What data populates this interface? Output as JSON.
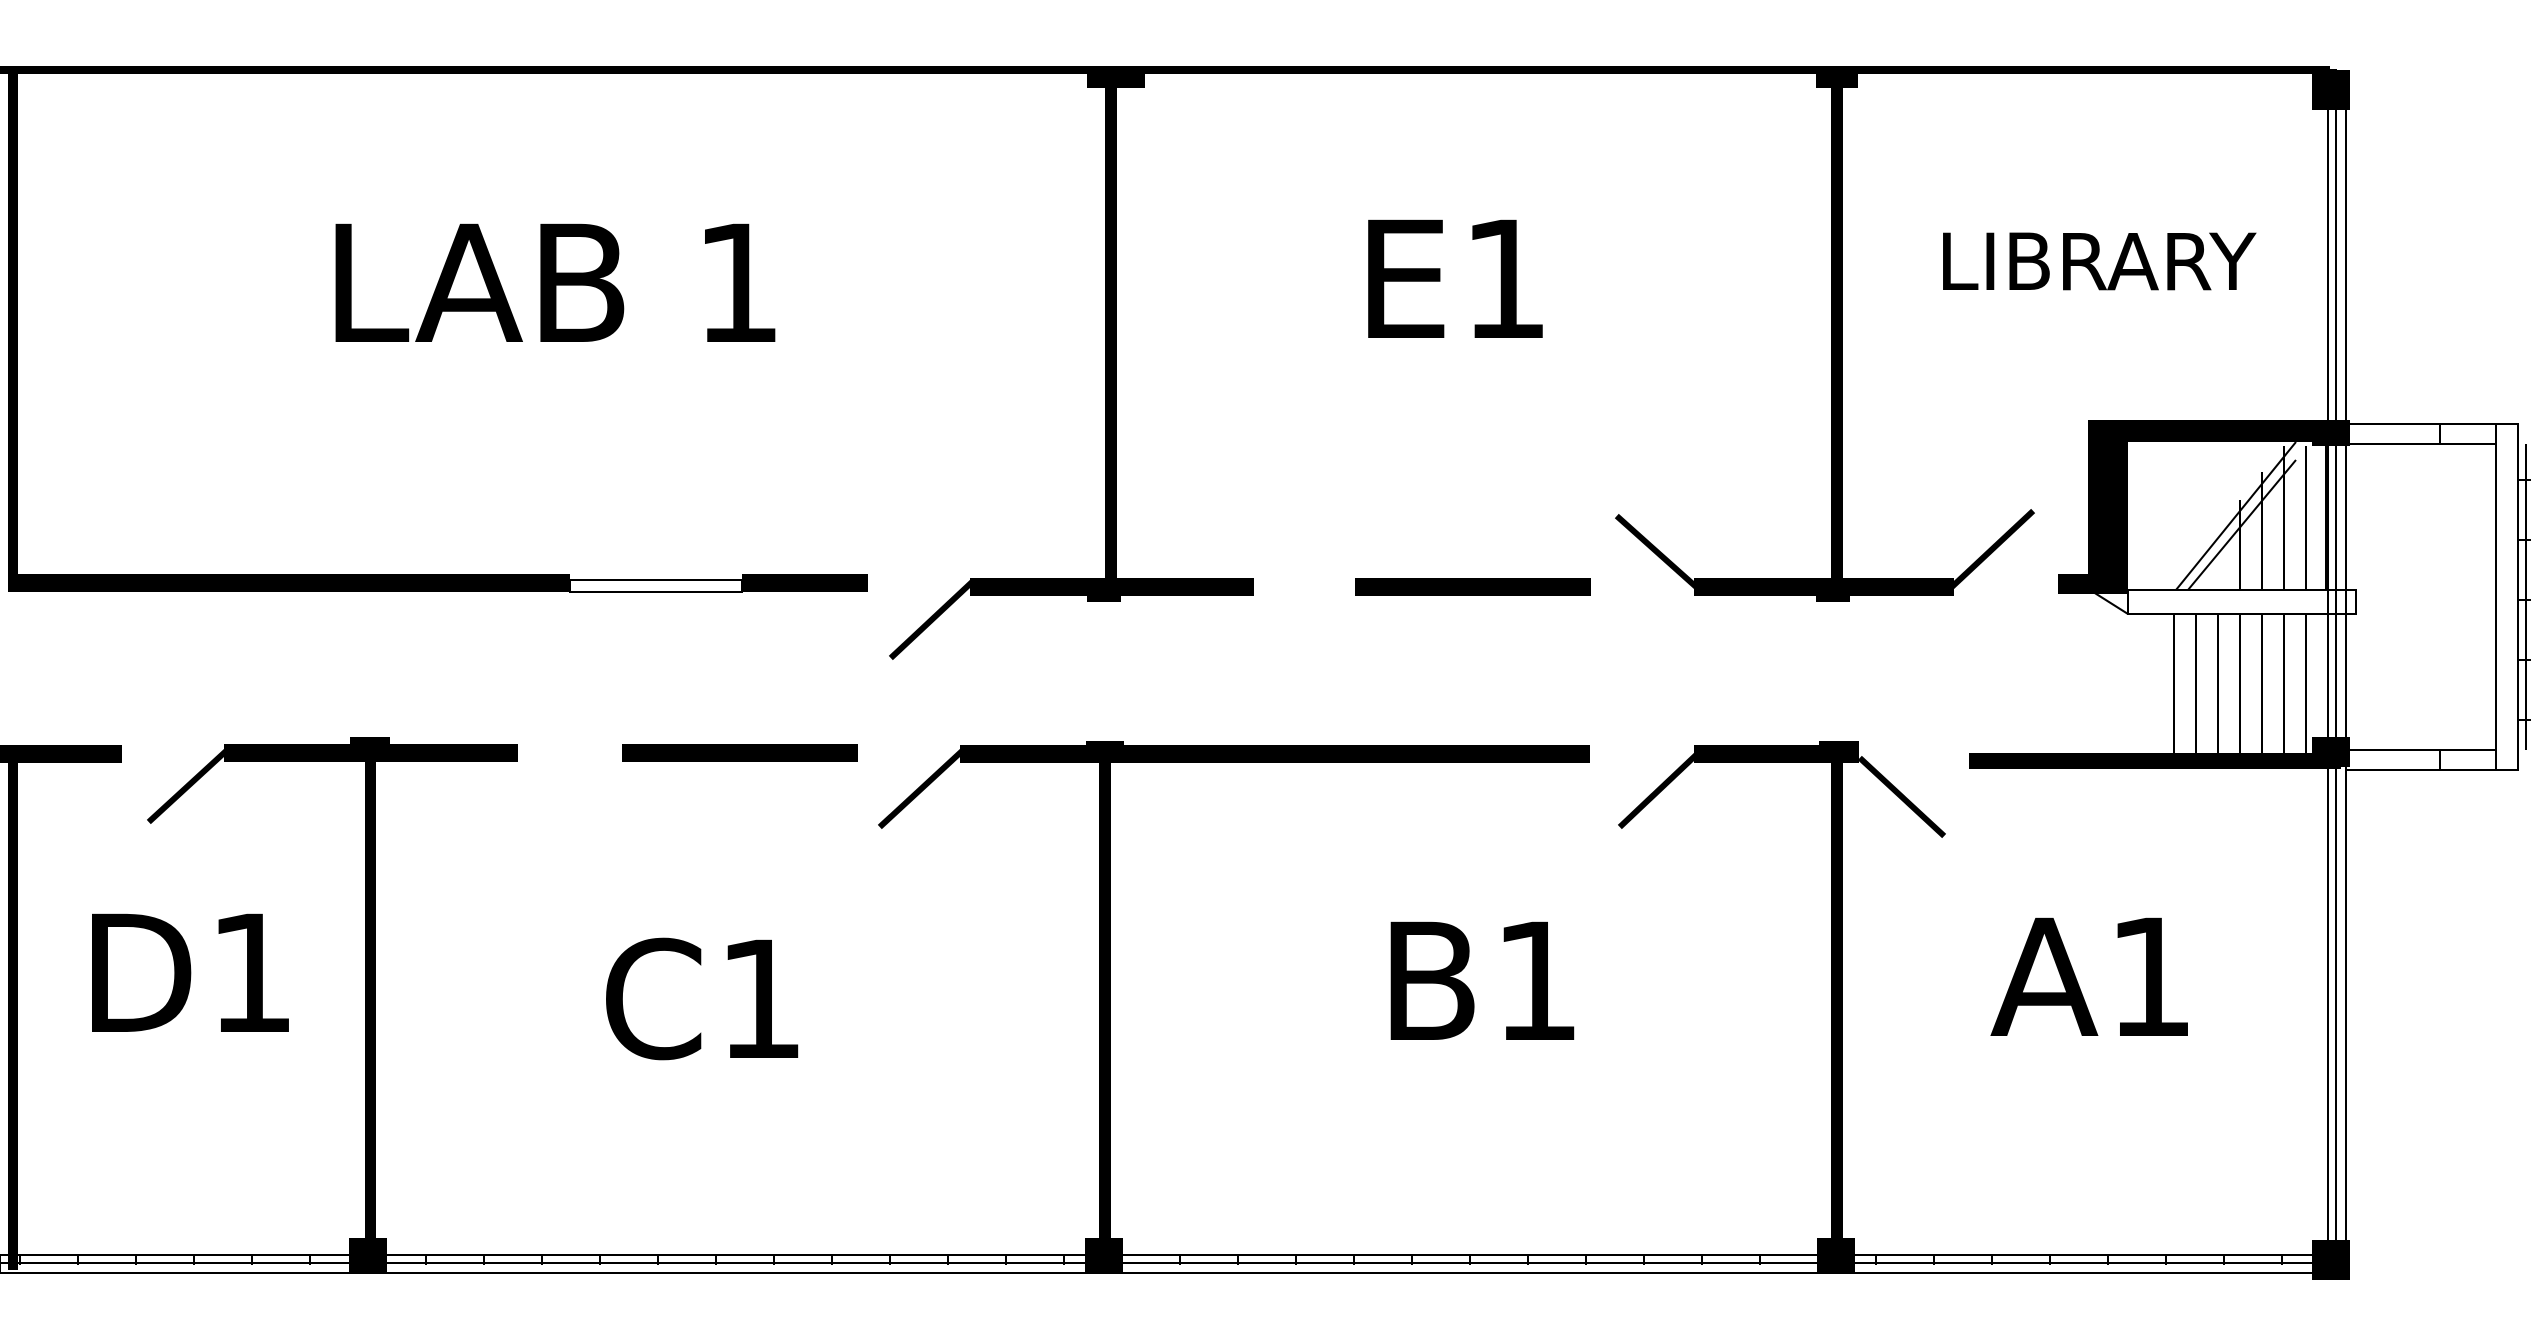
{
  "floor_plan": {
    "rooms": [
      {
        "id": "lab-1",
        "label": "LAB 1"
      },
      {
        "id": "e1",
        "label": "E1"
      },
      {
        "id": "library",
        "label": "LIBRARY"
      },
      {
        "id": "d1",
        "label": "D1"
      },
      {
        "id": "c1",
        "label": "C1"
      },
      {
        "id": "b1",
        "label": "B1"
      },
      {
        "id": "a1",
        "label": "A1"
      }
    ]
  },
  "colors": {
    "wall": "#000000",
    "background": "#ffffff"
  }
}
